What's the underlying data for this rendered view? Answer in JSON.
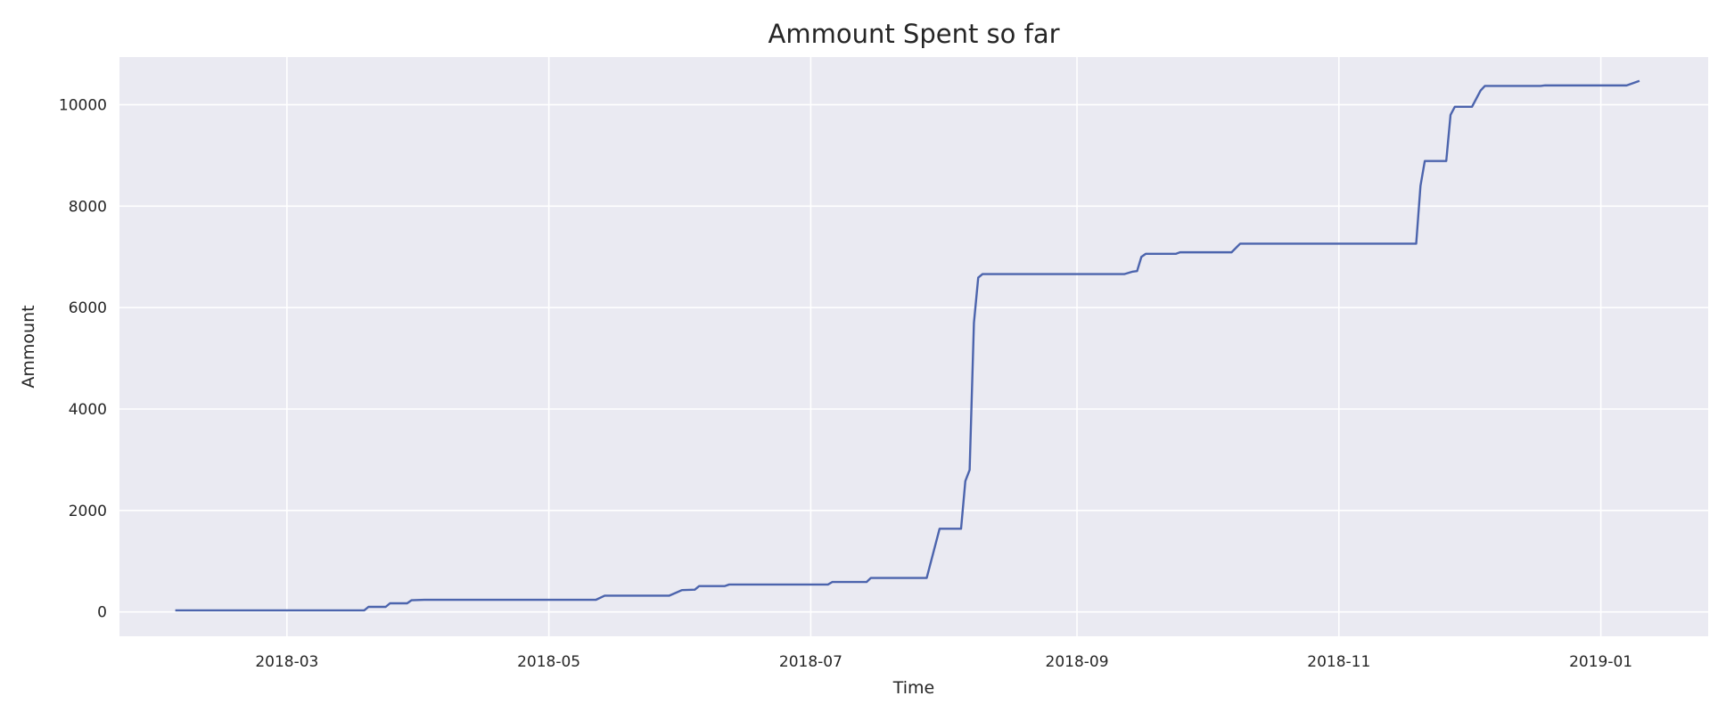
{
  "chart_data": {
    "type": "line",
    "title": "Ammount Spent so far",
    "xlabel": "Time",
    "ylabel": "Ammount",
    "x_axis_type": "date",
    "xlim": [
      "2018-01-21",
      "2019-01-26"
    ],
    "ylim": [
      -480,
      10940
    ],
    "grid": true,
    "background": "#eaeaf2",
    "grid_color": "#ffffff",
    "line_color": "#4c64ad",
    "x_ticks": [
      "2018-03",
      "2018-05",
      "2018-07",
      "2018-09",
      "2018-11",
      "2019-01"
    ],
    "x_tick_dates": [
      "2018-03-01",
      "2018-05-01",
      "2018-07-01",
      "2018-09-01",
      "2018-11-01",
      "2019-01-01"
    ],
    "y_ticks": [
      0,
      2000,
      4000,
      6000,
      8000,
      10000
    ],
    "series": [
      {
        "points": [
          [
            "2018-02-03",
            30
          ],
          [
            "2018-03-19",
            30
          ],
          [
            "2018-03-20",
            100
          ],
          [
            "2018-03-24",
            100
          ],
          [
            "2018-03-25",
            170
          ],
          [
            "2018-03-29",
            170
          ],
          [
            "2018-03-30",
            230
          ],
          [
            "2018-04-02",
            240
          ],
          [
            "2018-05-12",
            240
          ],
          [
            "2018-05-14",
            320
          ],
          [
            "2018-05-29",
            320
          ],
          [
            "2018-06-01",
            430
          ],
          [
            "2018-06-04",
            440
          ],
          [
            "2018-06-05",
            510
          ],
          [
            "2018-06-11",
            510
          ],
          [
            "2018-06-12",
            540
          ],
          [
            "2018-07-05",
            540
          ],
          [
            "2018-07-06",
            590
          ],
          [
            "2018-07-14",
            590
          ],
          [
            "2018-07-15",
            670
          ],
          [
            "2018-07-28",
            670
          ],
          [
            "2018-07-31",
            1640
          ],
          [
            "2018-08-05",
            1640
          ],
          [
            "2018-08-06",
            2580
          ],
          [
            "2018-08-07",
            2800
          ],
          [
            "2018-08-08",
            5700
          ],
          [
            "2018-08-09",
            6590
          ],
          [
            "2018-08-10",
            6660
          ],
          [
            "2018-09-12",
            6660
          ],
          [
            "2018-09-14",
            6710
          ],
          [
            "2018-09-15",
            6720
          ],
          [
            "2018-09-16",
            7000
          ],
          [
            "2018-09-17",
            7060
          ],
          [
            "2018-09-24",
            7060
          ],
          [
            "2018-09-25",
            7090
          ],
          [
            "2018-10-07",
            7090
          ],
          [
            "2018-10-09",
            7260
          ],
          [
            "2018-11-19",
            7260
          ],
          [
            "2018-11-20",
            8400
          ],
          [
            "2018-11-21",
            8890
          ],
          [
            "2018-11-26",
            8890
          ],
          [
            "2018-11-27",
            9800
          ],
          [
            "2018-11-28",
            9960
          ],
          [
            "2018-12-02",
            9960
          ],
          [
            "2018-12-04",
            10280
          ],
          [
            "2018-12-05",
            10370
          ],
          [
            "2018-12-18",
            10370
          ],
          [
            "2018-12-19",
            10380
          ],
          [
            "2019-01-07",
            10380
          ],
          [
            "2019-01-10",
            10470
          ]
        ]
      }
    ]
  }
}
